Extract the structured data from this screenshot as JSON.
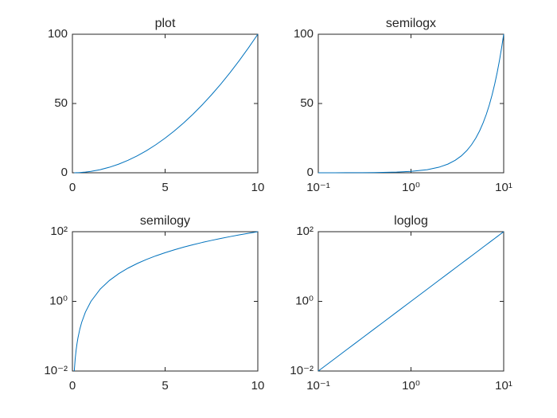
{
  "chart_data": [
    {
      "type": "line",
      "title": "plot",
      "xscale": "linear",
      "yscale": "linear",
      "xlim": [
        0,
        10
      ],
      "ylim": [
        0,
        100
      ],
      "xticks": [
        0,
        5,
        10
      ],
      "yticks": [
        0,
        50,
        100
      ],
      "x": [
        0.1,
        0.15,
        0.2,
        0.25,
        0.3,
        0.4,
        0.5,
        0.7,
        1,
        1.5,
        2,
        2.5,
        3,
        3.5,
        4,
        4.5,
        5,
        5.5,
        6,
        6.5,
        7,
        7.5,
        8,
        8.5,
        9,
        9.5,
        10
      ],
      "series": [
        {
          "color": "#0072bd",
          "values": [
            0.01,
            0.0225,
            0.04,
            0.0625,
            0.09,
            0.16,
            0.25,
            0.49,
            1,
            2.25,
            4,
            6.25,
            9,
            12.25,
            16,
            20.25,
            25,
            30.25,
            36,
            42.25,
            49,
            56.25,
            64,
            72.25,
            81,
            90.25,
            100
          ]
        }
      ]
    },
    {
      "type": "line",
      "title": "semilogx",
      "xscale": "log",
      "yscale": "linear",
      "xlim": [
        0.1,
        10
      ],
      "ylim": [
        0,
        100
      ],
      "xticks": [
        {
          "value": 0.1,
          "label": "10⁻¹"
        },
        {
          "value": 1,
          "label": "10⁰"
        },
        {
          "value": 10,
          "label": "10¹"
        }
      ],
      "yticks": [
        0,
        50,
        100
      ],
      "x": [
        0.1,
        0.15,
        0.2,
        0.25,
        0.3,
        0.4,
        0.5,
        0.7,
        1,
        1.5,
        2,
        2.5,
        3,
        3.5,
        4,
        4.5,
        5,
        5.5,
        6,
        6.5,
        7,
        7.5,
        8,
        8.5,
        9,
        9.5,
        10
      ],
      "series": [
        {
          "color": "#0072bd",
          "values": [
            0.01,
            0.0225,
            0.04,
            0.0625,
            0.09,
            0.16,
            0.25,
            0.49,
            1,
            2.25,
            4,
            6.25,
            9,
            12.25,
            16,
            20.25,
            25,
            30.25,
            36,
            42.25,
            49,
            56.25,
            64,
            72.25,
            81,
            90.25,
            100
          ]
        }
      ]
    },
    {
      "type": "line",
      "title": "semilogy",
      "xscale": "linear",
      "yscale": "log",
      "xlim": [
        0,
        10
      ],
      "ylim": [
        0.01,
        100
      ],
      "xticks": [
        0,
        5,
        10
      ],
      "yticks": [
        {
          "value": 0.01,
          "label": "10⁻²"
        },
        {
          "value": 1,
          "label": "10⁰"
        },
        {
          "value": 100,
          "label": "10²"
        }
      ],
      "x": [
        0.1,
        0.15,
        0.2,
        0.25,
        0.3,
        0.4,
        0.5,
        0.7,
        1,
        1.5,
        2,
        2.5,
        3,
        3.5,
        4,
        4.5,
        5,
        5.5,
        6,
        6.5,
        7,
        7.5,
        8,
        8.5,
        9,
        9.5,
        10
      ],
      "series": [
        {
          "color": "#0072bd",
          "values": [
            0.01,
            0.0225,
            0.04,
            0.0625,
            0.09,
            0.16,
            0.25,
            0.49,
            1,
            2.25,
            4,
            6.25,
            9,
            12.25,
            16,
            20.25,
            25,
            30.25,
            36,
            42.25,
            49,
            56.25,
            64,
            72.25,
            81,
            90.25,
            100
          ]
        }
      ]
    },
    {
      "type": "line",
      "title": "loglog",
      "xscale": "log",
      "yscale": "log",
      "xlim": [
        0.1,
        10
      ],
      "ylim": [
        0.01,
        100
      ],
      "xticks": [
        {
          "value": 0.1,
          "label": "10⁻¹"
        },
        {
          "value": 1,
          "label": "10⁰"
        },
        {
          "value": 10,
          "label": "10¹"
        }
      ],
      "yticks": [
        {
          "value": 0.01,
          "label": "10⁻²"
        },
        {
          "value": 1,
          "label": "10⁰"
        },
        {
          "value": 100,
          "label": "10²"
        }
      ],
      "x": [
        0.1,
        0.15,
        0.2,
        0.25,
        0.3,
        0.4,
        0.5,
        0.7,
        1,
        1.5,
        2,
        2.5,
        3,
        3.5,
        4,
        4.5,
        5,
        5.5,
        6,
        6.5,
        7,
        7.5,
        8,
        8.5,
        9,
        9.5,
        10
      ],
      "series": [
        {
          "color": "#0072bd",
          "values": [
            0.01,
            0.0225,
            0.04,
            0.0625,
            0.09,
            0.16,
            0.25,
            0.49,
            1,
            2.25,
            4,
            6.25,
            9,
            12.25,
            16,
            20.25,
            25,
            30.25,
            36,
            42.25,
            49,
            56.25,
            64,
            72.25,
            81,
            90.25,
            100
          ]
        }
      ]
    }
  ]
}
